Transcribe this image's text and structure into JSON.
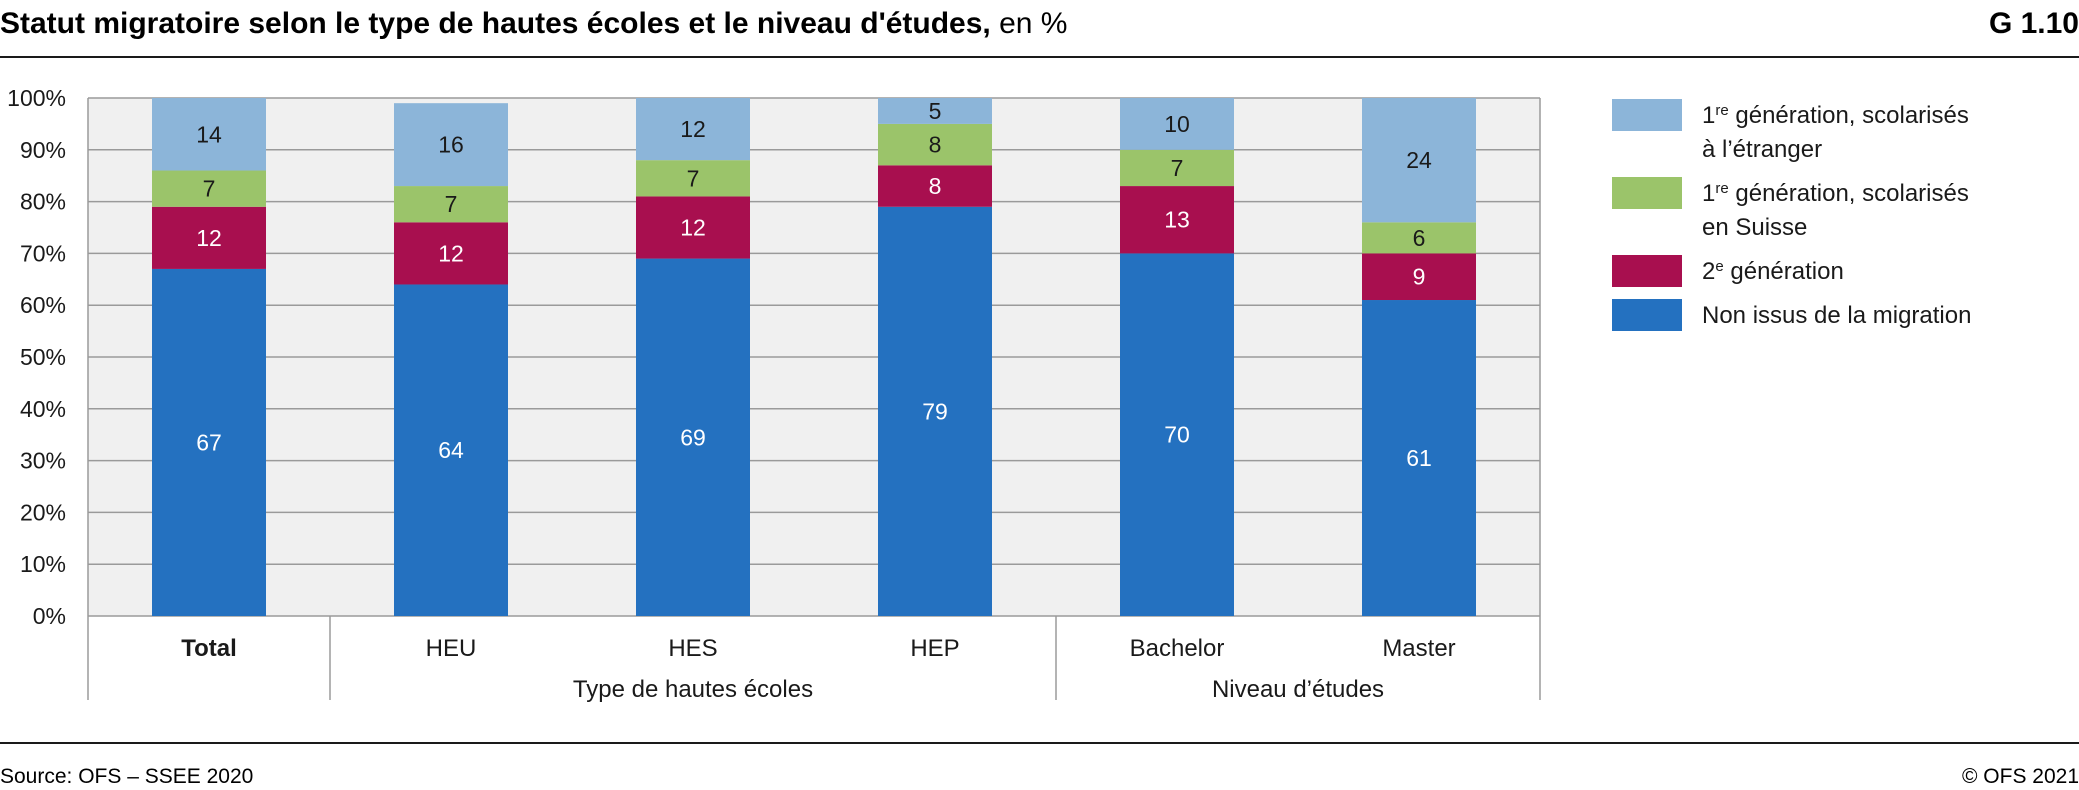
{
  "header": {
    "title_main": "Statut migratoire selon le type de hautes écoles et le niveau d'études,",
    "title_unit": " en %",
    "graph_id": "G 1.10"
  },
  "footer": {
    "source": "Source: OFS – SSEE 2020",
    "copyright": "© OFS 2021"
  },
  "chart_data": {
    "type": "bar",
    "stacked": true,
    "categories": [
      "Total",
      "HEU",
      "HES",
      "HEP",
      "Bachelor",
      "Master"
    ],
    "bold_categories": [
      "Total"
    ],
    "groups": [
      {
        "label": "Type de hautes écoles",
        "categories": [
          "HEU",
          "HES",
          "HEP"
        ]
      },
      {
        "label": "Niveau d’études",
        "categories": [
          "Bachelor",
          "Master"
        ]
      }
    ],
    "series": [
      {
        "name": "Non issus de la migration",
        "values": [
          67,
          64,
          69,
          79,
          70,
          61
        ],
        "color": "#2471c0"
      },
      {
        "name_base": "2",
        "name_sup": "e",
        "name_rest": " génération",
        "values": [
          12,
          12,
          12,
          8,
          13,
          9
        ],
        "color": "#a80f4f"
      },
      {
        "name_base": "1",
        "name_sup": "re",
        "name_rest": " génération, scolarisés",
        "name_line2": "en Suisse",
        "values": [
          7,
          7,
          7,
          8,
          7,
          6
        ],
        "color": "#9bc46a"
      },
      {
        "name_base": "1",
        "name_sup": "re",
        "name_rest": " génération, scolarisés",
        "name_line2": "à l’étranger",
        "values": [
          14,
          16,
          12,
          5,
          10,
          24
        ],
        "color": "#8cb5d9"
      }
    ],
    "y_ticks": [
      "0%",
      "10%",
      "20%",
      "30%",
      "40%",
      "50%",
      "60%",
      "70%",
      "80%",
      "90%",
      "100%"
    ],
    "ylim": [
      0,
      100
    ],
    "grid": true,
    "legend_position": "right"
  }
}
